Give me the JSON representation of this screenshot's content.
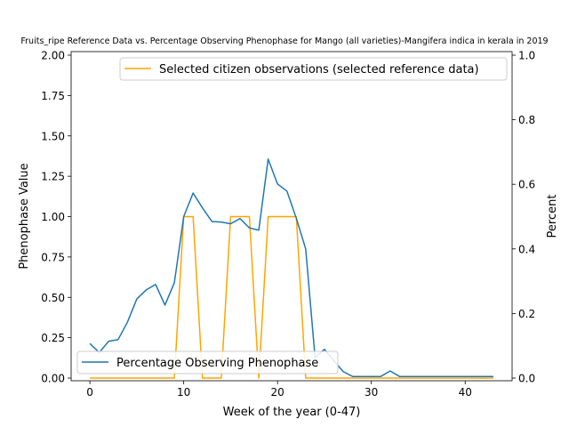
{
  "chart_data": {
    "type": "line",
    "title": "Fruits_ripe Reference Data vs. Percentage Observing Phenophase for Mango (all varieties)-Mangifera indica in kerala in 2019",
    "xlabel": "Week of the year (0-47)",
    "ylabel_left": "Phenophase Value",
    "ylabel_right": "Percent",
    "xlim": [
      -2,
      45
    ],
    "ylim_left": [
      0,
      2.0
    ],
    "ylim_right": [
      0,
      1.0
    ],
    "xticks": [
      0,
      10,
      20,
      30,
      40
    ],
    "yticks_left": [
      0.0,
      0.25,
      0.5,
      0.75,
      1.0,
      1.25,
      1.5,
      1.75,
      2.0
    ],
    "yticks_right": [
      0.0,
      0.2,
      0.4,
      0.6,
      0.8,
      1.0
    ],
    "grid": false,
    "series": [
      {
        "name": "Selected citizen observations (selected reference data)",
        "axis": "left",
        "color": "#ffa500",
        "legend_position": "upper-right",
        "x": [
          0,
          1,
          2,
          3,
          4,
          5,
          6,
          7,
          8,
          9,
          10,
          11,
          12,
          13,
          14,
          15,
          16,
          17,
          18,
          19,
          20,
          21,
          22,
          23,
          24,
          25,
          26,
          27,
          28,
          29,
          30,
          31,
          32,
          33,
          34,
          35,
          36,
          37,
          38,
          39,
          40,
          41,
          42,
          43
        ],
        "y": [
          0,
          0,
          0,
          0,
          0,
          0,
          0,
          0,
          0,
          0,
          1,
          1,
          0,
          0,
          0,
          1,
          1,
          1,
          0,
          1,
          1,
          1,
          1,
          0,
          0,
          0,
          0,
          0,
          0,
          0,
          0,
          0,
          0,
          0,
          0,
          0,
          0,
          0,
          0,
          0,
          0,
          0,
          0,
          0
        ]
      },
      {
        "name": "Percentage Observing Phenophase",
        "axis": "right",
        "color": "#1f77b4",
        "legend_position": "lower-left",
        "x": [
          0,
          1,
          2,
          3,
          4,
          5,
          6,
          7,
          8,
          9,
          10,
          11,
          12,
          13,
          14,
          15,
          16,
          17,
          18,
          19,
          20,
          21,
          22,
          23,
          24,
          25,
          26,
          27,
          28,
          29,
          30,
          31,
          32,
          33,
          34,
          35,
          36,
          37,
          38,
          39,
          40,
          41,
          42,
          43
        ],
        "y": [
          0.107,
          0.079,
          0.114,
          0.119,
          0.173,
          0.245,
          0.273,
          0.29,
          0.226,
          0.295,
          0.5,
          0.573,
          0.527,
          0.485,
          0.483,
          0.478,
          0.494,
          0.465,
          0.458,
          0.678,
          0.601,
          0.579,
          0.495,
          0.4,
          0.064,
          0.089,
          0.054,
          0.02,
          0.005,
          0.005,
          0.005,
          0.005,
          0.022,
          0.005,
          0.005,
          0.005,
          0.005,
          0.005,
          0.005,
          0.005,
          0.005,
          0.005,
          0.005,
          0.005
        ]
      }
    ]
  }
}
